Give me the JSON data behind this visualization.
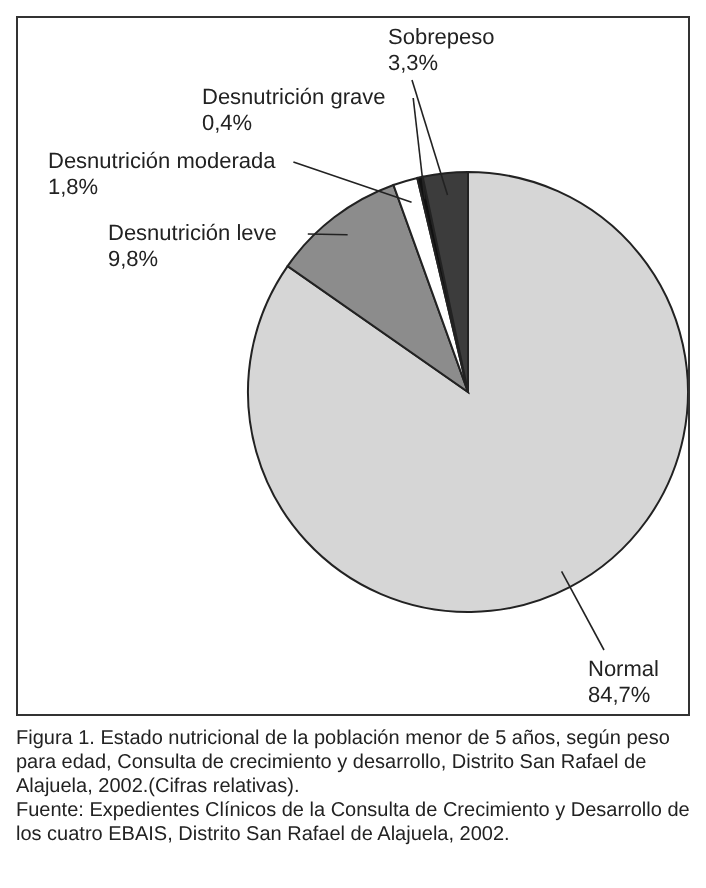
{
  "chart_data": {
    "type": "pie",
    "title": "Figura 1. Estado nutricional de la población menor de 5 años, según peso para edad, Consulta de crecimiento y desarrollo, Distrito San Rafael de Alajuela, 2002.(Cifras relativas).",
    "categories": [
      "Normal",
      "Desnutrición leve",
      "Desnutrición moderada",
      "Desnutrición grave",
      "Sobrepeso"
    ],
    "values": [
      84.7,
      9.8,
      1.8,
      0.4,
      3.3
    ],
    "value_labels": [
      "84,7%",
      "9,8%",
      "1,8%",
      "0,4%",
      "3,3%"
    ],
    "colors": [
      "#d6d6d6",
      "#8c8c8c",
      "#ffffff",
      "#111111",
      "#3c3c3c"
    ],
    "annotations": [
      "Fuente: Expedientes Clínicos de la Consulta de Crecimiento y Desarrollo de los cuatro EBAIS, Distrito San Rafael de Alajuela, 2002."
    ]
  }
}
